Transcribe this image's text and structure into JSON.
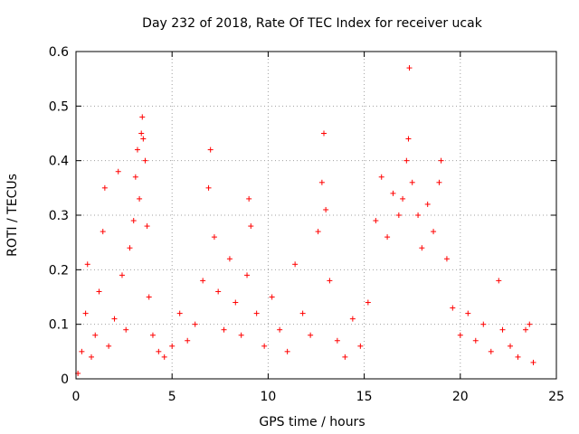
{
  "chart_data": {
    "type": "scatter",
    "title": "Day 232 of 2018, Rate Of TEC Index for receiver ucak",
    "xlabel": "GPS time / hours",
    "ylabel": "ROTI / TECUs",
    "xlim": [
      0,
      25
    ],
    "ylim": [
      0,
      0.6
    ],
    "x_ticks": [
      0,
      5,
      10,
      15,
      20,
      25
    ],
    "x_tick_labels": [
      "0",
      "5",
      "10",
      "15",
      "20",
      "25"
    ],
    "y_ticks": [
      0,
      0.1,
      0.2,
      0.3,
      0.4,
      0.5,
      0.6
    ],
    "y_tick_labels": [
      "0",
      "0.1",
      "0.2",
      "0.3",
      "0.4",
      "0.5",
      "0.6"
    ],
    "grid": true,
    "marker": "+",
    "marker_color": "#ff0000",
    "grid_color": "#a0a0a0",
    "series": [
      {
        "name": "ROTI",
        "points": [
          [
            0.1,
            0.01
          ],
          [
            0.3,
            0.05
          ],
          [
            0.5,
            0.12
          ],
          [
            0.6,
            0.21
          ],
          [
            0.8,
            0.04
          ],
          [
            1.0,
            0.08
          ],
          [
            1.2,
            0.16
          ],
          [
            1.4,
            0.27
          ],
          [
            1.5,
            0.35
          ],
          [
            1.7,
            0.06
          ],
          [
            2.0,
            0.11
          ],
          [
            2.2,
            0.38
          ],
          [
            2.4,
            0.19
          ],
          [
            2.6,
            0.09
          ],
          [
            2.8,
            0.24
          ],
          [
            3.0,
            0.29
          ],
          [
            3.1,
            0.37
          ],
          [
            3.2,
            0.42
          ],
          [
            3.3,
            0.33
          ],
          [
            3.4,
            0.45
          ],
          [
            3.45,
            0.48
          ],
          [
            3.5,
            0.44
          ],
          [
            3.6,
            0.4
          ],
          [
            3.7,
            0.28
          ],
          [
            3.8,
            0.15
          ],
          [
            4.0,
            0.08
          ],
          [
            4.3,
            0.05
          ],
          [
            4.6,
            0.04
          ],
          [
            5.0,
            0.06
          ],
          [
            5.4,
            0.12
          ],
          [
            5.8,
            0.07
          ],
          [
            6.2,
            0.1
          ],
          [
            6.6,
            0.18
          ],
          [
            6.9,
            0.35
          ],
          [
            7.0,
            0.42
          ],
          [
            7.2,
            0.26
          ],
          [
            7.4,
            0.16
          ],
          [
            7.7,
            0.09
          ],
          [
            8.0,
            0.22
          ],
          [
            8.3,
            0.14
          ],
          [
            8.6,
            0.08
          ],
          [
            8.9,
            0.19
          ],
          [
            9.0,
            0.33
          ],
          [
            9.1,
            0.28
          ],
          [
            9.4,
            0.12
          ],
          [
            9.8,
            0.06
          ],
          [
            10.2,
            0.15
          ],
          [
            10.6,
            0.09
          ],
          [
            11.0,
            0.05
          ],
          [
            11.4,
            0.21
          ],
          [
            11.8,
            0.12
          ],
          [
            12.2,
            0.08
          ],
          [
            12.6,
            0.27
          ],
          [
            12.8,
            0.36
          ],
          [
            12.9,
            0.45
          ],
          [
            13.0,
            0.31
          ],
          [
            13.2,
            0.18
          ],
          [
            13.6,
            0.07
          ],
          [
            14.0,
            0.04
          ],
          [
            14.4,
            0.11
          ],
          [
            14.8,
            0.06
          ],
          [
            15.2,
            0.14
          ],
          [
            15.6,
            0.29
          ],
          [
            15.9,
            0.37
          ],
          [
            16.2,
            0.26
          ],
          [
            16.5,
            0.34
          ],
          [
            16.8,
            0.3
          ],
          [
            17.0,
            0.33
          ],
          [
            17.2,
            0.4
          ],
          [
            17.3,
            0.44
          ],
          [
            17.35,
            0.57
          ],
          [
            17.5,
            0.36
          ],
          [
            17.8,
            0.3
          ],
          [
            18.0,
            0.24
          ],
          [
            18.3,
            0.32
          ],
          [
            18.6,
            0.27
          ],
          [
            18.9,
            0.36
          ],
          [
            19.0,
            0.4
          ],
          [
            19.3,
            0.22
          ],
          [
            19.6,
            0.13
          ],
          [
            20.0,
            0.08
          ],
          [
            20.4,
            0.12
          ],
          [
            20.8,
            0.07
          ],
          [
            21.2,
            0.1
          ],
          [
            21.6,
            0.05
          ],
          [
            22.0,
            0.18
          ],
          [
            22.2,
            0.09
          ],
          [
            22.6,
            0.06
          ],
          [
            23.0,
            0.04
          ],
          [
            23.4,
            0.09
          ],
          [
            23.6,
            0.1
          ],
          [
            23.8,
            0.03
          ]
        ]
      }
    ]
  }
}
